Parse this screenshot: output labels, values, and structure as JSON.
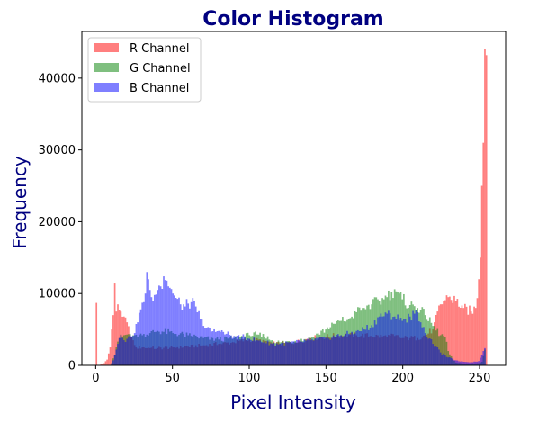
{
  "chart_data": {
    "type": "bar",
    "title": "Color Histogram",
    "xlabel": "Pixel Intensity",
    "ylabel": "Frequency",
    "xlim": [
      -9,
      267
    ],
    "ylim": [
      0,
      46500
    ],
    "xticks": [
      0,
      50,
      100,
      150,
      200,
      250
    ],
    "yticks": [
      0,
      10000,
      20000,
      30000,
      40000
    ],
    "grid": false,
    "legend": "top-left",
    "bins": 256,
    "x_range": [
      0,
      255
    ],
    "series": [
      {
        "name": "R Channel",
        "color": "#ff0000",
        "alpha": 0.5,
        "keypoints": [
          [
            0,
            8700
          ],
          [
            1,
            0
          ],
          [
            2,
            0
          ],
          [
            3,
            200
          ],
          [
            5,
            300
          ],
          [
            7,
            800
          ],
          [
            9,
            2500
          ],
          [
            10,
            5000
          ],
          [
            11,
            7000
          ],
          [
            12,
            11400
          ],
          [
            13,
            7500
          ],
          [
            14,
            8500
          ],
          [
            16,
            7500
          ],
          [
            18,
            6800
          ],
          [
            20,
            6000
          ],
          [
            22,
            4200
          ],
          [
            24,
            3500
          ],
          [
            26,
            2500
          ],
          [
            30,
            2500
          ],
          [
            35,
            2400
          ],
          [
            40,
            2400
          ],
          [
            50,
            2500
          ],
          [
            60,
            2600
          ],
          [
            70,
            2800
          ],
          [
            80,
            3000
          ],
          [
            90,
            3200
          ],
          [
            100,
            3600
          ],
          [
            110,
            3400
          ],
          [
            115,
            3100
          ],
          [
            120,
            3000
          ],
          [
            130,
            3200
          ],
          [
            140,
            3800
          ],
          [
            150,
            4000
          ],
          [
            160,
            4200
          ],
          [
            170,
            4200
          ],
          [
            180,
            4100
          ],
          [
            190,
            4000
          ],
          [
            195,
            4100
          ],
          [
            200,
            3800
          ],
          [
            205,
            3800
          ],
          [
            210,
            3800
          ],
          [
            215,
            4200
          ],
          [
            220,
            5000
          ],
          [
            225,
            8500
          ],
          [
            230,
            9500
          ],
          [
            235,
            9000
          ],
          [
            240,
            8000
          ],
          [
            245,
            7500
          ],
          [
            248,
            8000
          ],
          [
            250,
            12000
          ],
          [
            251,
            15000
          ],
          [
            252,
            25000
          ],
          [
            253,
            31000
          ],
          [
            254,
            44000
          ],
          [
            255,
            43200
          ]
        ]
      },
      {
        "name": "G Channel",
        "color": "#008000",
        "alpha": 0.5,
        "keypoints": [
          [
            0,
            0
          ],
          [
            9,
            0
          ],
          [
            10,
            300
          ],
          [
            12,
            1500
          ],
          [
            13,
            2500
          ],
          [
            15,
            3800
          ],
          [
            18,
            4200
          ],
          [
            20,
            4300
          ],
          [
            22,
            4400
          ],
          [
            25,
            4200
          ],
          [
            30,
            4200
          ],
          [
            35,
            4500
          ],
          [
            40,
            4800
          ],
          [
            50,
            4500
          ],
          [
            60,
            4200
          ],
          [
            70,
            3800
          ],
          [
            80,
            3600
          ],
          [
            90,
            3800
          ],
          [
            100,
            4200
          ],
          [
            105,
            4300
          ],
          [
            110,
            4000
          ],
          [
            115,
            3500
          ],
          [
            120,
            3200
          ],
          [
            130,
            3400
          ],
          [
            140,
            3800
          ],
          [
            150,
            5000
          ],
          [
            155,
            5800
          ],
          [
            160,
            6200
          ],
          [
            165,
            6500
          ],
          [
            170,
            7400
          ],
          [
            175,
            8000
          ],
          [
            180,
            8500
          ],
          [
            185,
            8900
          ],
          [
            188,
            9200
          ],
          [
            190,
            9500
          ],
          [
            193,
            10200
          ],
          [
            195,
            10600
          ],
          [
            198,
            10000
          ],
          [
            200,
            9200
          ],
          [
            205,
            8400
          ],
          [
            210,
            8000
          ],
          [
            215,
            7000
          ],
          [
            220,
            5500
          ],
          [
            225,
            4200
          ],
          [
            228,
            4000
          ],
          [
            230,
            2000
          ],
          [
            233,
            800
          ],
          [
            235,
            400
          ],
          [
            240,
            250
          ],
          [
            245,
            250
          ],
          [
            250,
            300
          ],
          [
            252,
            500
          ],
          [
            254,
            2200
          ],
          [
            255,
            0
          ]
        ]
      },
      {
        "name": "B Channel",
        "color": "#0000ff",
        "alpha": 0.5,
        "keypoints": [
          [
            0,
            0
          ],
          [
            9,
            0
          ],
          [
            10,
            300
          ],
          [
            11,
            700
          ],
          [
            12,
            1500
          ],
          [
            13,
            2200
          ],
          [
            14,
            3000
          ],
          [
            15,
            3800
          ],
          [
            16,
            4200
          ],
          [
            18,
            3500
          ],
          [
            20,
            3700
          ],
          [
            22,
            4200
          ],
          [
            25,
            4500
          ],
          [
            27,
            6000
          ],
          [
            29,
            7800
          ],
          [
            31,
            8800
          ],
          [
            32,
            10000
          ],
          [
            33,
            13000
          ],
          [
            34,
            12000
          ],
          [
            35,
            10500
          ],
          [
            36,
            9500
          ],
          [
            38,
            9800
          ],
          [
            40,
            10500
          ],
          [
            42,
            11000
          ],
          [
            44,
            12400
          ],
          [
            46,
            11800
          ],
          [
            48,
            10800
          ],
          [
            50,
            10000
          ],
          [
            52,
            9400
          ],
          [
            55,
            8500
          ],
          [
            58,
            8200
          ],
          [
            60,
            8600
          ],
          [
            62,
            8800
          ],
          [
            65,
            8200
          ],
          [
            68,
            6500
          ],
          [
            70,
            5500
          ],
          [
            75,
            4700
          ],
          [
            80,
            4800
          ],
          [
            85,
            4400
          ],
          [
            90,
            4100
          ],
          [
            95,
            4000
          ],
          [
            100,
            3700
          ],
          [
            105,
            3500
          ],
          [
            110,
            3300
          ],
          [
            115,
            3000
          ],
          [
            120,
            3000
          ],
          [
            130,
            3200
          ],
          [
            140,
            3500
          ],
          [
            150,
            3800
          ],
          [
            160,
            4200
          ],
          [
            165,
            4400
          ],
          [
            170,
            4800
          ],
          [
            175,
            5000
          ],
          [
            180,
            5600
          ],
          [
            185,
            6800
          ],
          [
            190,
            7200
          ],
          [
            195,
            6800
          ],
          [
            200,
            6200
          ],
          [
            205,
            6800
          ],
          [
            208,
            7200
          ],
          [
            210,
            7400
          ],
          [
            212,
            6000
          ],
          [
            215,
            4500
          ],
          [
            220,
            3000
          ],
          [
            225,
            1800
          ],
          [
            230,
            1100
          ],
          [
            235,
            700
          ],
          [
            240,
            500
          ],
          [
            245,
            450
          ],
          [
            250,
            600
          ],
          [
            252,
            1500
          ],
          [
            253,
            2000
          ],
          [
            254,
            2400
          ],
          [
            255,
            0
          ]
        ]
      }
    ]
  }
}
